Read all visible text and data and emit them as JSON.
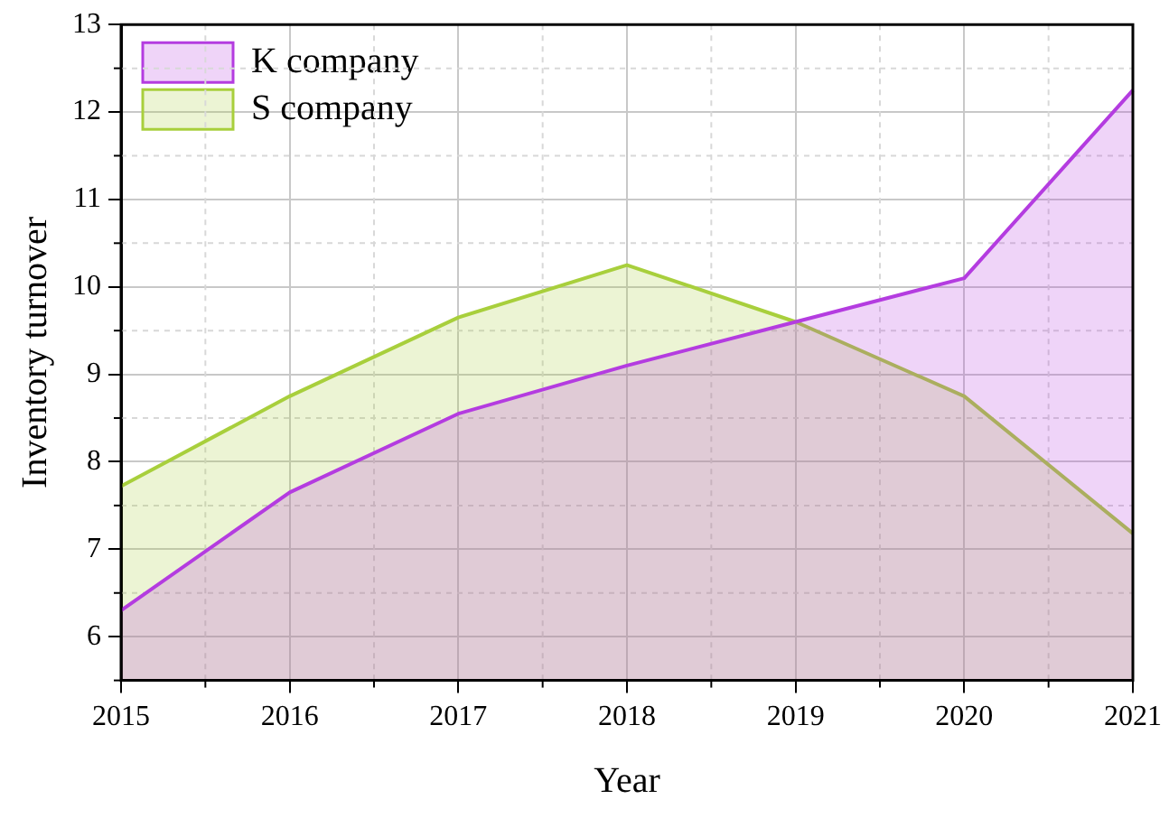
{
  "chart_data": {
    "type": "area",
    "xlabel": "Year",
    "ylabel": "Inventory turnover",
    "categories": [
      "2015",
      "2016",
      "2017",
      "2018",
      "2019",
      "2020",
      "2021"
    ],
    "series": [
      {
        "name": "K company",
        "color": "#b43ce0",
        "values": [
          6.3,
          7.65,
          8.55,
          9.1,
          9.6,
          10.1,
          12.25
        ]
      },
      {
        "name": "S company",
        "color": "#a8cf3c",
        "values": [
          7.72,
          8.75,
          9.65,
          10.25,
          9.6,
          8.75,
          7.18
        ]
      }
    ],
    "ylim": [
      5.5,
      13
    ],
    "yticks": [
      6,
      7,
      8,
      9,
      10,
      11,
      12,
      13
    ],
    "grid": true,
    "legend": "top left",
    "marker": "none",
    "line_style": "solid"
  }
}
